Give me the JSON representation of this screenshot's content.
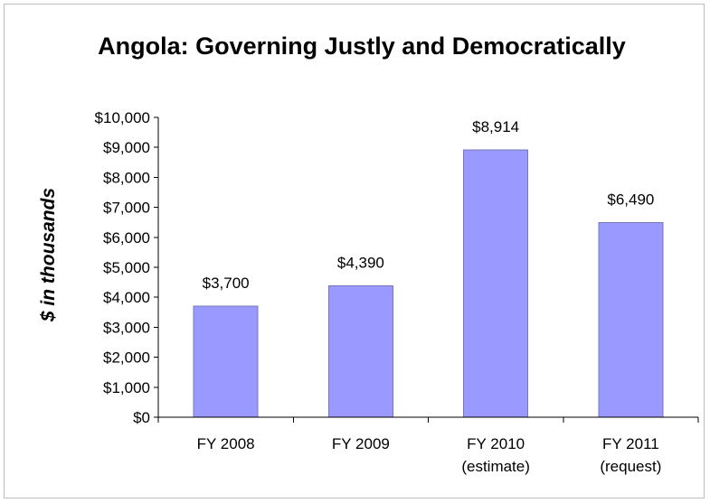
{
  "chart_data": {
    "type": "bar",
    "title": "Angola: Governing Justly and Democratically",
    "xlabel": "",
    "ylabel": "$ in thousands",
    "categories": [
      [
        "FY 2008"
      ],
      [
        "FY 2009"
      ],
      [
        "FY 2010",
        "(estimate)"
      ],
      [
        "FY 2011",
        "(request)"
      ]
    ],
    "values": [
      3700,
      4390,
      8914,
      6490
    ],
    "data_labels": [
      "$3,700",
      "$4,390",
      "$8,914",
      "$6,490"
    ],
    "ylim": [
      0,
      10000
    ],
    "yticks": [
      0,
      1000,
      2000,
      3000,
      4000,
      5000,
      6000,
      7000,
      8000,
      9000,
      10000
    ],
    "ytick_labels": [
      "$0",
      "$1,000",
      "$2,000",
      "$3,000",
      "$4,000",
      "$5,000",
      "$6,000",
      "$7,000",
      "$8,000",
      "$9,000",
      "$10,000"
    ],
    "grid": false,
    "legend": "none",
    "bar_color": "#9999ff"
  }
}
